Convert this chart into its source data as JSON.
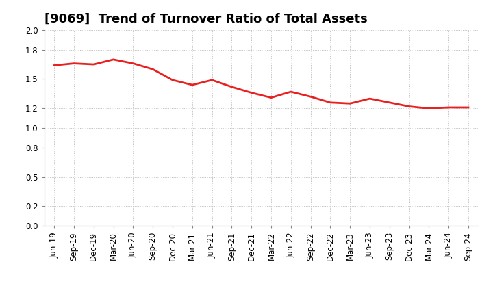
{
  "title": "[9069]  Trend of Turnover Ratio of Total Assets",
  "x_labels": [
    "Jun-19",
    "Sep-19",
    "Dec-19",
    "Mar-20",
    "Jun-20",
    "Sep-20",
    "Dec-20",
    "Mar-21",
    "Jun-21",
    "Sep-21",
    "Dec-21",
    "Mar-22",
    "Jun-22",
    "Sep-22",
    "Dec-22",
    "Mar-23",
    "Jun-23",
    "Sep-23",
    "Dec-23",
    "Mar-24",
    "Jun-24",
    "Sep-24"
  ],
  "values": [
    1.64,
    1.66,
    1.65,
    1.7,
    1.66,
    1.6,
    1.49,
    1.44,
    1.49,
    1.42,
    1.36,
    1.31,
    1.37,
    1.32,
    1.26,
    1.25,
    1.3,
    1.26,
    1.22,
    1.2,
    1.21,
    1.21
  ],
  "line_color": "#e82020",
  "line_width": 2.0,
  "ylim": [
    0.0,
    2.0
  ],
  "yticks": [
    0.0,
    0.2,
    0.5,
    0.8,
    1.0,
    1.2,
    1.5,
    1.8,
    2.0
  ],
  "ytick_labels": [
    "0.0",
    "0.2",
    "0.5",
    "0.8",
    "1.0",
    "1.2",
    "1.5",
    "1.8",
    "2.0"
  ],
  "background_color": "#ffffff",
  "grid_color": "#c0c0c0",
  "title_fontsize": 13,
  "tick_fontsize": 8.5
}
